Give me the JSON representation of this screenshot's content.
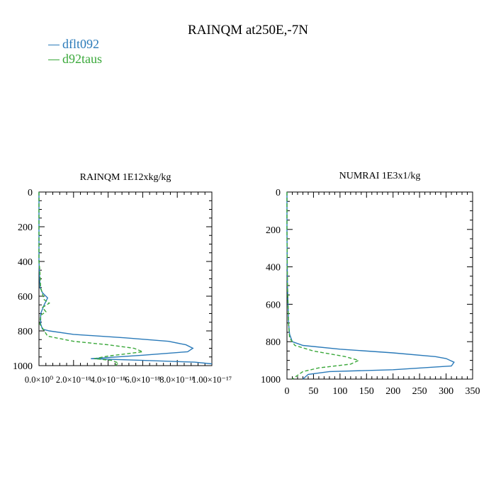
{
  "title": "RAINQM at250E,-7N",
  "legend": [
    {
      "label": "dflt092",
      "color": "#2a7ab9"
    },
    {
      "label": "d92taus",
      "color": "#3aa83a"
    }
  ],
  "chart_data": [
    {
      "type": "line",
      "title": "RAINQM  1E12xkg/kg",
      "xlim": [
        0,
        1e-17
      ],
      "ylim": [
        1000,
        0
      ],
      "yticks": [
        0,
        200,
        400,
        600,
        800,
        1000
      ],
      "xtick_values": [
        0,
        2e-18,
        4e-18,
        6e-18,
        8e-18,
        1e-17
      ],
      "xticks": [
        "0.0×10⁰",
        "2.0×10⁻¹⁸",
        "4.0×10⁻¹⁸",
        "6.0×10⁻¹⁸",
        "8.0×10⁻¹⁸",
        "1.00×10⁻¹⁷"
      ],
      "xlabel": "",
      "ylabel": "",
      "series": [
        {
          "name": "dflt092",
          "style": "solid",
          "x": [
            0,
            0,
            0,
            6e-20,
            2e-19,
            5e-19,
            3e-19,
            1e-19,
            1e-19,
            2e-19,
            6e-19,
            2e-18,
            5e-18,
            7.5e-18,
            8.5e-18,
            8.9e-18,
            8.6e-18,
            6e-18,
            3e-18,
            6e-18,
            9e-18,
            1e-17
          ],
          "y": [
            0,
            200,
            400,
            550,
            580,
            610,
            650,
            700,
            760,
            790,
            800,
            820,
            840,
            860,
            880,
            900,
            920,
            940,
            960,
            970,
            980,
            990
          ]
        },
        {
          "name": "d92taus",
          "style": "dashed",
          "x": [
            0,
            0,
            0,
            5e-20,
            1e-19,
            3e-19,
            6e-19,
            2e-19,
            4e-19,
            1e-19,
            5e-20,
            5e-19,
            2e-18,
            4e-18,
            5.5e-18,
            6e-18,
            4e-18,
            3.2e-18,
            4.2e-18,
            4.6e-18,
            4.4e-18
          ],
          "y": [
            0,
            200,
            400,
            450,
            550,
            620,
            640,
            665,
            690,
            710,
            760,
            830,
            860,
            880,
            900,
            920,
            945,
            960,
            970,
            985,
            1000
          ]
        }
      ]
    },
    {
      "type": "line",
      "title": "NUMRAI  1E3x1/kg",
      "xlim": [
        0,
        350
      ],
      "ylim": [
        1000,
        0
      ],
      "yticks": [
        0,
        200,
        400,
        600,
        800,
        1000
      ],
      "xtick_values": [
        0,
        50,
        100,
        150,
        200,
        250,
        300,
        350
      ],
      "xticks": [
        "0",
        "50",
        "100",
        "150",
        "200",
        "250",
        "300",
        "350"
      ],
      "xlabel": "",
      "ylabel": "",
      "series": [
        {
          "name": "dflt092",
          "style": "solid",
          "x": [
            0,
            0,
            0.5,
            1,
            2,
            3,
            5,
            10,
            30,
            100,
            200,
            280,
            300,
            315,
            310,
            200,
            80,
            40,
            30
          ],
          "y": [
            0,
            200,
            400,
            500,
            600,
            700,
            760,
            800,
            820,
            840,
            860,
            880,
            890,
            910,
            930,
            950,
            960,
            975,
            1000
          ]
        },
        {
          "name": "d92taus",
          "style": "dashed",
          "x": [
            0,
            0,
            0.5,
            1,
            2,
            3,
            5,
            15,
            50,
            110,
            135,
            120,
            60,
            30,
            20,
            15,
            10
          ],
          "y": [
            0,
            200,
            400,
            500,
            600,
            700,
            780,
            820,
            850,
            880,
            900,
            920,
            940,
            960,
            980,
            990,
            1000
          ]
        }
      ]
    }
  ]
}
